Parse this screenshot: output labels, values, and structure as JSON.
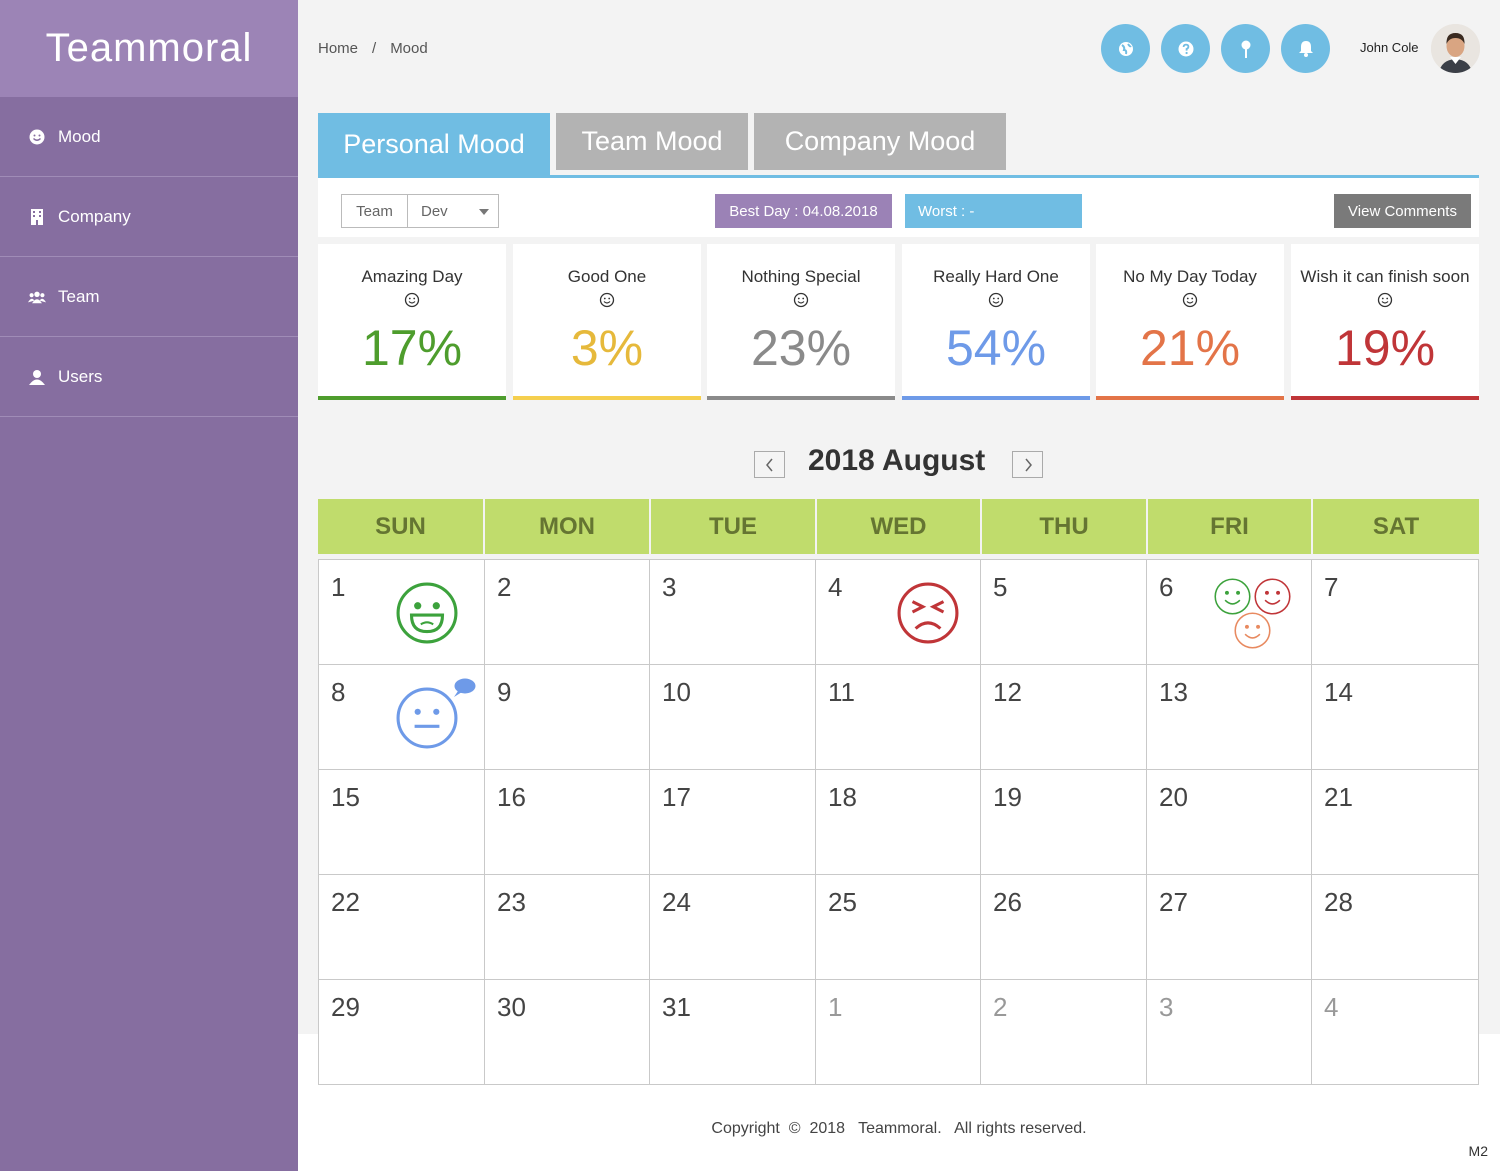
{
  "brand": "Teammoral",
  "sidebar": {
    "items": [
      {
        "label": "Mood",
        "icon": "smile-icon"
      },
      {
        "label": "Company",
        "icon": "building-icon"
      },
      {
        "label": "Team",
        "icon": "users-icon"
      },
      {
        "label": "Users",
        "icon": "user-icon"
      }
    ]
  },
  "breadcrumb": {
    "home": "Home",
    "separator": "/",
    "current": "Mood"
  },
  "header": {
    "icons": [
      "globe-icon",
      "help-icon",
      "pin-icon",
      "bell-icon"
    ],
    "user_name": "John Cole"
  },
  "tabs": [
    {
      "label": "Personal Mood",
      "active": true
    },
    {
      "label": "Team Mood",
      "active": false
    },
    {
      "label": "Company Mood",
      "active": false
    }
  ],
  "filters": {
    "scope_label": "Team",
    "scope_value": "Dev",
    "best_day": "Best Day : 04.08.2018",
    "worst_day": "Worst : -",
    "view_comments": "View Comments"
  },
  "stats": [
    {
      "label": "Amazing Day",
      "percent": "17%",
      "color": "#4e9d2d"
    },
    {
      "label": "Good One",
      "percent": "3%",
      "color": "#e6b93b"
    },
    {
      "label": "Nothing Special",
      "percent": "23%",
      "color": "#8a8a8a"
    },
    {
      "label": "Really Hard One",
      "percent": "54%",
      "color": "#6e9ae8"
    },
    {
      "label": "No My Day Today",
      "percent": "21%",
      "color": "#e37448"
    },
    {
      "label": "Wish it can finish soon",
      "percent": "19%",
      "color": "#c03538"
    }
  ],
  "calendar": {
    "title": "2018 August",
    "weekdays": [
      "SUN",
      "MON",
      "TUE",
      "WED",
      "THU",
      "FRI",
      "SAT"
    ],
    "weeks": [
      [
        "1",
        "2",
        "3",
        "4",
        "5",
        "6",
        "7"
      ],
      [
        "8",
        "9",
        "10",
        "11",
        "12",
        "13",
        "14"
      ],
      [
        "15",
        "16",
        "17",
        "18",
        "19",
        "20",
        "21"
      ],
      [
        "22",
        "23",
        "24",
        "25",
        "26",
        "27",
        "28"
      ],
      [
        "29",
        "30",
        "31",
        "1",
        "2",
        "3",
        "4"
      ]
    ],
    "dim_cells": [
      "4-3",
      "4-4",
      "4-5",
      "4-6"
    ]
  },
  "footer": "Copyright  ©  2018   Teammoral.   All rights reserved.",
  "corner_label": "M2"
}
